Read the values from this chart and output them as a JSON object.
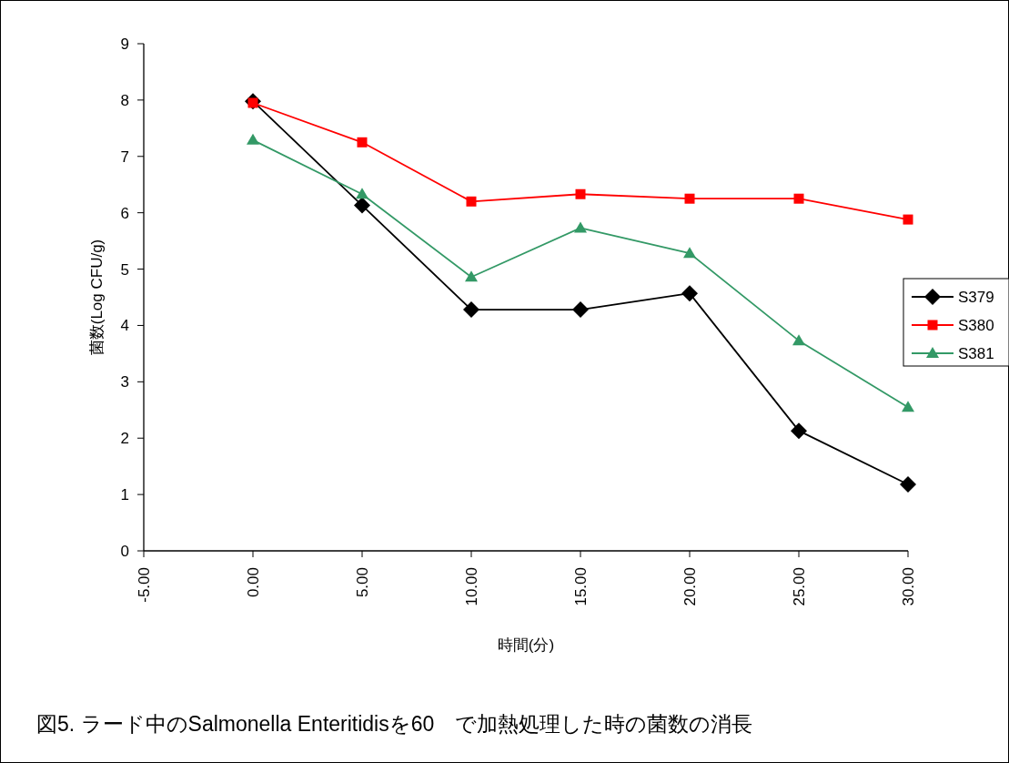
{
  "chart_data": {
    "type": "line",
    "xlabel": "時間(分)",
    "ylabel": "菌数(Log CFU/g)",
    "annotations": [
      "図5. ラード中のSalmonella Enteritidisを60　で加熱処理した時の菌数の消長"
    ],
    "x": [
      0,
      5,
      10,
      15,
      20,
      25,
      30
    ],
    "xlim": [
      -5,
      30
    ],
    "xticks": [
      {
        "value": -5,
        "label": "-5.00"
      },
      {
        "value": 0,
        "label": "0.00"
      },
      {
        "value": 5,
        "label": "5.00"
      },
      {
        "value": 10,
        "label": "10.00"
      },
      {
        "value": 15,
        "label": "15.00"
      },
      {
        "value": 20,
        "label": "20.00"
      },
      {
        "value": 25,
        "label": "25.00"
      },
      {
        "value": 30,
        "label": "30.00"
      }
    ],
    "ylim": [
      0,
      9
    ],
    "yticks": [
      0,
      1,
      2,
      3,
      4,
      5,
      6,
      7,
      8,
      9
    ],
    "grid": false,
    "legend": "right",
    "line_style": "solid",
    "series": [
      {
        "name": "S379",
        "color": "#000000",
        "marker": "diamond",
        "values": [
          7.98,
          6.13,
          4.28,
          4.28,
          4.57,
          2.13,
          1.18
        ]
      },
      {
        "name": "S380",
        "color": "#ff0000",
        "marker": "square",
        "values": [
          7.95,
          7.25,
          6.2,
          6.33,
          6.25,
          6.25,
          5.88
        ]
      },
      {
        "name": "S381",
        "color": "#339966",
        "marker": "triangle",
        "values": [
          7.29,
          6.33,
          4.86,
          5.73,
          5.28,
          3.73,
          2.55
        ]
      }
    ]
  }
}
